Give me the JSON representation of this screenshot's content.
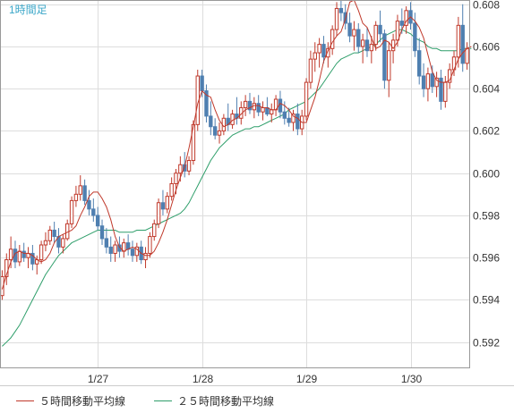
{
  "chart_data": {
    "type": "candlestick",
    "title": "1時間足",
    "ylim": [
      0.5908,
      0.6082
    ],
    "y_ticks": [
      "0.592",
      "0.594",
      "0.596",
      "0.598",
      "0.600",
      "0.602",
      "0.604",
      "0.606",
      "0.608"
    ],
    "x_ticks": [
      {
        "label": "1/27",
        "index": 22
      },
      {
        "label": "1/28",
        "index": 46
      },
      {
        "label": "1/29",
        "index": 70
      },
      {
        "label": "1/30",
        "index": 94
      }
    ],
    "grid": true,
    "legend_position": "bottom",
    "colors": {
      "up": "#c0392b",
      "down": "#4f7fb0",
      "ma5": "#c0392b",
      "ma25": "#2e9e6a",
      "grid": "#dddddd",
      "axis_text": "#333333",
      "title": "#3aa6c8"
    },
    "series": [
      {
        "name": "５時間移動平均線",
        "values": [
          0.5945,
          0.5952,
          0.5958,
          0.5962,
          0.5963,
          0.5962,
          0.5962,
          0.5961,
          0.5959,
          0.5958,
          0.5959,
          0.5962,
          0.5967,
          0.597,
          0.5971,
          0.5972,
          0.5973,
          0.5975,
          0.598,
          0.5984,
          0.5989,
          0.5991,
          0.5991,
          0.5988,
          0.5984,
          0.5978,
          0.597,
          0.5965,
          0.5963,
          0.5964,
          0.5965,
          0.5964,
          0.5962,
          0.5961,
          0.5961,
          0.5963,
          0.5967,
          0.5972,
          0.5978,
          0.5985,
          0.5992,
          0.5998,
          0.6003,
          0.6012,
          0.6022,
          0.6033,
          0.6039,
          0.6037,
          0.6036,
          0.603,
          0.6025,
          0.6022,
          0.6023,
          0.6025,
          0.6026,
          0.6028,
          0.603,
          0.6031,
          0.6032,
          0.6032,
          0.6031,
          0.6031,
          0.603,
          0.603,
          0.6033,
          0.6032,
          0.603,
          0.6027,
          0.6026,
          0.6024,
          0.6024,
          0.603,
          0.6036,
          0.6044,
          0.6053,
          0.6058,
          0.6062,
          0.6065,
          0.6067,
          0.6073,
          0.6081,
          0.6082,
          0.6077,
          0.6071,
          0.6069,
          0.6064,
          0.6059,
          0.606,
          0.6063,
          0.6062,
          0.6059,
          0.6062,
          0.6068,
          0.6072,
          0.6074,
          0.6072,
          0.6069,
          0.6064,
          0.6056,
          0.6048,
          0.6044,
          0.6043,
          0.6043,
          0.6044,
          0.6049,
          0.6054,
          0.6057,
          0.6059,
          0.606
        ]
      },
      {
        "name": "２５時間移動平均線",
        "values": [
          0.5918,
          0.592,
          0.5922,
          0.5925,
          0.5928,
          0.5932,
          0.5936,
          0.594,
          0.5944,
          0.5948,
          0.5952,
          0.5955,
          0.5958,
          0.5961,
          0.5963,
          0.5965,
          0.5967,
          0.5968,
          0.5969,
          0.597,
          0.5971,
          0.5972,
          0.5973,
          0.5973,
          0.5973,
          0.5973,
          0.5973,
          0.5972,
          0.5972,
          0.5972,
          0.5972,
          0.5973,
          0.5973,
          0.5973,
          0.5974,
          0.5975,
          0.5976,
          0.5977,
          0.5978,
          0.5979,
          0.598,
          0.5981,
          0.5983,
          0.5986,
          0.599,
          0.5994,
          0.5998,
          0.6002,
          0.6006,
          0.6009,
          0.6012,
          0.6014,
          0.6016,
          0.6018,
          0.6019,
          0.602,
          0.6021,
          0.6021,
          0.6022,
          0.6022,
          0.6023,
          0.6024,
          0.6025,
          0.6026,
          0.6027,
          0.6028,
          0.603,
          0.6031,
          0.6032,
          0.6033,
          0.6034,
          0.6036,
          0.6038,
          0.604,
          0.6043,
          0.6046,
          0.6049,
          0.6052,
          0.6054,
          0.6055,
          0.6056,
          0.6057,
          0.6057,
          0.6058,
          0.6059,
          0.606,
          0.6061,
          0.6063,
          0.6065,
          0.6066,
          0.6067,
          0.6068,
          0.6068,
          0.6067,
          0.6066,
          0.6064,
          0.6063,
          0.6062,
          0.606,
          0.6059,
          0.6059,
          0.6058,
          0.6058,
          0.6058,
          0.6058,
          0.6058,
          0.6059,
          0.6059,
          0.6059
        ]
      }
    ],
    "candles": [
      [
        0.5942,
        0.5954,
        0.594,
        0.5951
      ],
      [
        0.5951,
        0.5962,
        0.5947,
        0.5959
      ],
      [
        0.5959,
        0.597,
        0.5955,
        0.5964
      ],
      [
        0.5964,
        0.5968,
        0.5955,
        0.5958
      ],
      [
        0.5958,
        0.5966,
        0.5956,
        0.5963
      ],
      [
        0.5963,
        0.5967,
        0.5958,
        0.596
      ],
      [
        0.596,
        0.5965,
        0.5955,
        0.5962
      ],
      [
        0.5962,
        0.5966,
        0.5954,
        0.5957
      ],
      [
        0.5957,
        0.5961,
        0.5952,
        0.5959
      ],
      [
        0.5959,
        0.5968,
        0.5957,
        0.5966
      ],
      [
        0.5966,
        0.5972,
        0.5963,
        0.5968
      ],
      [
        0.5968,
        0.5975,
        0.5966,
        0.5973
      ],
      [
        0.5973,
        0.5977,
        0.5967,
        0.597
      ],
      [
        0.597,
        0.5974,
        0.5962,
        0.5965
      ],
      [
        0.5965,
        0.5971,
        0.5962,
        0.5969
      ],
      [
        0.5969,
        0.5978,
        0.5968,
        0.5976
      ],
      [
        0.5976,
        0.5989,
        0.5974,
        0.5987
      ],
      [
        0.5987,
        0.5994,
        0.5984,
        0.599
      ],
      [
        0.599,
        0.5999,
        0.5987,
        0.5994
      ],
      [
        0.5994,
        0.5997,
        0.5985,
        0.5987
      ],
      [
        0.5987,
        0.5992,
        0.598,
        0.5983
      ],
      [
        0.5983,
        0.5988,
        0.5977,
        0.598
      ],
      [
        0.598,
        0.5984,
        0.5973,
        0.5975
      ],
      [
        0.5975,
        0.5978,
        0.5966,
        0.5969
      ],
      [
        0.5969,
        0.5974,
        0.5962,
        0.5965
      ],
      [
        0.5965,
        0.597,
        0.5958,
        0.5962
      ],
      [
        0.5962,
        0.5968,
        0.5958,
        0.5966
      ],
      [
        0.5966,
        0.597,
        0.596,
        0.5963
      ],
      [
        0.5963,
        0.5969,
        0.596,
        0.5967
      ],
      [
        0.5967,
        0.5971,
        0.5961,
        0.5964
      ],
      [
        0.5964,
        0.5968,
        0.5958,
        0.5961
      ],
      [
        0.5961,
        0.5967,
        0.5958,
        0.5965
      ],
      [
        0.5965,
        0.5968,
        0.5957,
        0.5959
      ],
      [
        0.5959,
        0.5965,
        0.5955,
        0.5962
      ],
      [
        0.5962,
        0.5972,
        0.596,
        0.597
      ],
      [
        0.597,
        0.5978,
        0.5968,
        0.5976
      ],
      [
        0.5976,
        0.5988,
        0.5974,
        0.5986
      ],
      [
        0.5986,
        0.5992,
        0.598,
        0.5983
      ],
      [
        0.5983,
        0.5991,
        0.5981,
        0.5989
      ],
      [
        0.5989,
        0.5998,
        0.5987,
        0.5995
      ],
      [
        0.5995,
        0.6002,
        0.599,
        0.6
      ],
      [
        0.6,
        0.6008,
        0.5996,
        0.6004
      ],
      [
        0.6004,
        0.601,
        0.5998,
        0.6001
      ],
      [
        0.6001,
        0.6008,
        0.5999,
        0.6006
      ],
      [
        0.6006,
        0.6025,
        0.6004,
        0.6023
      ],
      [
        0.6023,
        0.6049,
        0.602,
        0.6046
      ],
      [
        0.6046,
        0.6049,
        0.6036,
        0.6039
      ],
      [
        0.6039,
        0.6042,
        0.6024,
        0.6027
      ],
      [
        0.6027,
        0.6034,
        0.6018,
        0.6022
      ],
      [
        0.6022,
        0.6026,
        0.6016,
        0.6018
      ],
      [
        0.6018,
        0.6024,
        0.6014,
        0.602
      ],
      [
        0.602,
        0.6028,
        0.6018,
        0.6026
      ],
      [
        0.6026,
        0.6033,
        0.602,
        0.6023
      ],
      [
        0.6023,
        0.603,
        0.6021,
        0.6028
      ],
      [
        0.6028,
        0.6036,
        0.6023,
        0.6026
      ],
      [
        0.6026,
        0.6034,
        0.6023,
        0.6031
      ],
      [
        0.6031,
        0.6037,
        0.6027,
        0.6034
      ],
      [
        0.6034,
        0.6038,
        0.6028,
        0.603
      ],
      [
        0.603,
        0.6036,
        0.6026,
        0.6033
      ],
      [
        0.6033,
        0.6037,
        0.6027,
        0.6029
      ],
      [
        0.6029,
        0.6034,
        0.6025,
        0.6031
      ],
      [
        0.6031,
        0.6036,
        0.6027,
        0.6028
      ],
      [
        0.6028,
        0.6033,
        0.6024,
        0.603
      ],
      [
        0.603,
        0.6037,
        0.6027,
        0.6035
      ],
      [
        0.6035,
        0.6039,
        0.6026,
        0.6029
      ],
      [
        0.6029,
        0.6034,
        0.6023,
        0.6026
      ],
      [
        0.6026,
        0.6031,
        0.6022,
        0.6024
      ],
      [
        0.6024,
        0.603,
        0.602,
        0.6028
      ],
      [
        0.6028,
        0.6033,
        0.6018,
        0.6021
      ],
      [
        0.6021,
        0.603,
        0.6018,
        0.6027
      ],
      [
        0.6027,
        0.6045,
        0.6025,
        0.6043
      ],
      [
        0.6043,
        0.6058,
        0.604,
        0.6054
      ],
      [
        0.6054,
        0.6062,
        0.6048,
        0.6057
      ],
      [
        0.6057,
        0.6064,
        0.605,
        0.6061
      ],
      [
        0.6061,
        0.6065,
        0.6052,
        0.6055
      ],
      [
        0.6055,
        0.6062,
        0.605,
        0.6059
      ],
      [
        0.6059,
        0.607,
        0.6056,
        0.6068
      ],
      [
        0.6068,
        0.6081,
        0.6065,
        0.6078
      ],
      [
        0.6078,
        0.6082,
        0.6072,
        0.6076
      ],
      [
        0.6076,
        0.608,
        0.6068,
        0.6071
      ],
      [
        0.6071,
        0.6076,
        0.6062,
        0.6065
      ],
      [
        0.6065,
        0.6072,
        0.6058,
        0.6068
      ],
      [
        0.6068,
        0.6071,
        0.6057,
        0.606
      ],
      [
        0.606,
        0.6066,
        0.6052,
        0.6063
      ],
      [
        0.6063,
        0.6069,
        0.6055,
        0.6058
      ],
      [
        0.6058,
        0.6065,
        0.6052,
        0.6061
      ],
      [
        0.6061,
        0.6072,
        0.6058,
        0.607
      ],
      [
        0.607,
        0.6077,
        0.6062,
        0.6066
      ],
      [
        0.6066,
        0.6068,
        0.604,
        0.6044
      ],
      [
        0.6044,
        0.6062,
        0.6036,
        0.6058
      ],
      [
        0.6058,
        0.6066,
        0.6052,
        0.6063
      ],
      [
        0.6063,
        0.6075,
        0.606,
        0.6072
      ],
      [
        0.6072,
        0.6078,
        0.6066,
        0.607
      ],
      [
        0.607,
        0.6079,
        0.6066,
        0.6077
      ],
      [
        0.6077,
        0.6081,
        0.6068,
        0.6071
      ],
      [
        0.6071,
        0.6076,
        0.6055,
        0.6058
      ],
      [
        0.6058,
        0.6064,
        0.6042,
        0.6046
      ],
      [
        0.6046,
        0.6052,
        0.6036,
        0.604
      ],
      [
        0.604,
        0.605,
        0.6034,
        0.6047
      ],
      [
        0.6047,
        0.6051,
        0.6038,
        0.6041
      ],
      [
        0.6041,
        0.6048,
        0.6036,
        0.6045
      ],
      [
        0.6045,
        0.6049,
        0.603,
        0.6034
      ],
      [
        0.6034,
        0.6046,
        0.6031,
        0.6043
      ],
      [
        0.6043,
        0.6052,
        0.604,
        0.6049
      ],
      [
        0.6049,
        0.6058,
        0.6046,
        0.6055
      ],
      [
        0.6055,
        0.6074,
        0.605,
        0.607
      ],
      [
        0.607,
        0.608,
        0.6048,
        0.6052
      ],
      [
        0.6052,
        0.6062,
        0.6049,
        0.6059
      ]
    ]
  }
}
